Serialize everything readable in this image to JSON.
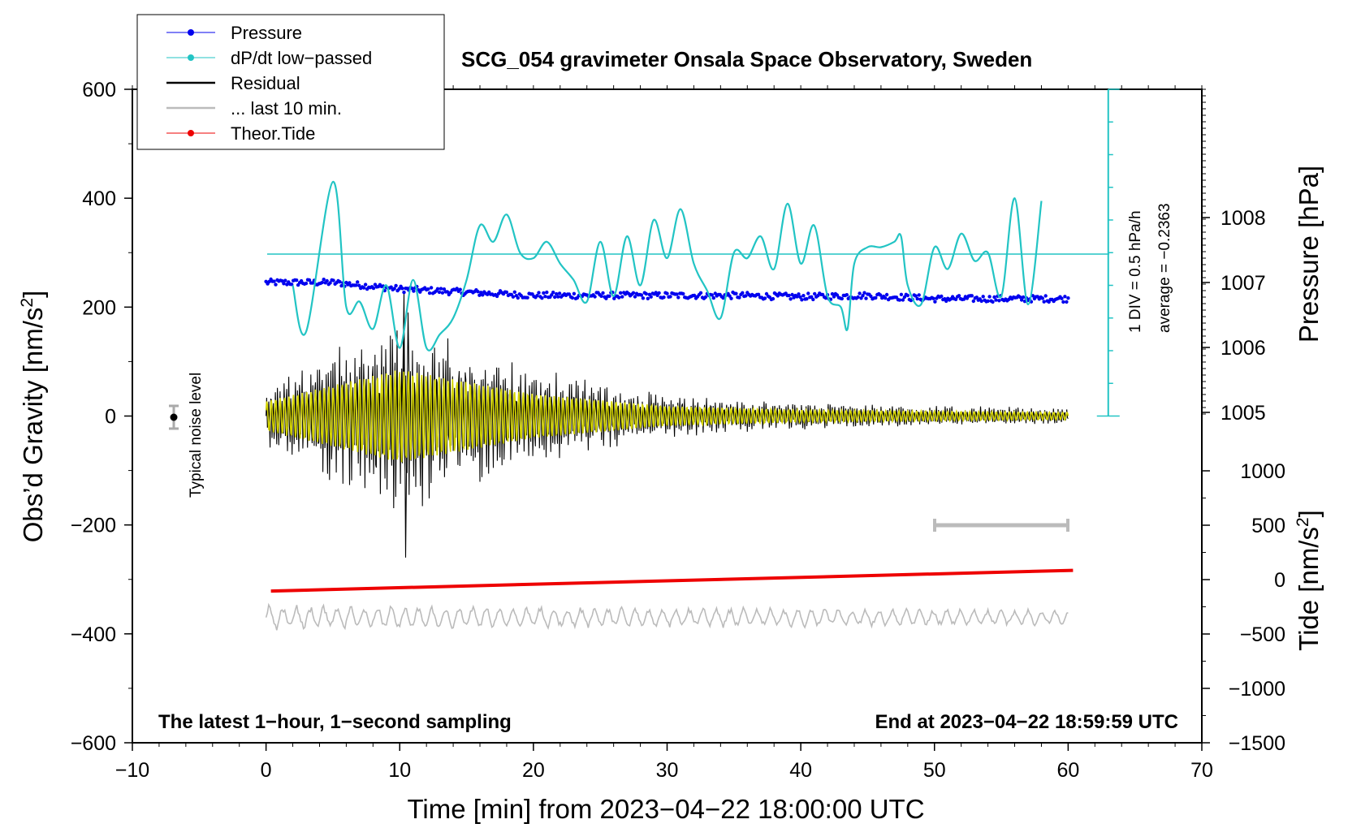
{
  "chart_data": {
    "type": "line",
    "title": "SCG_054 gravimeter Onsala Space Observatory, Sweden",
    "xlabel": "Time [min] from 2023−04−22 18:00:00 UTC",
    "ylabel_left_main": "Obs’d Gravity [nm/s",
    "ylabel_left_sup": "2",
    "ylabel_left_close": "]",
    "ylabel_right_top": "Pressure [hPa]",
    "ylabel_right_bottom_main": "Tide [nm/s",
    "ylabel_right_bottom_sup": "2",
    "ylabel_right_bottom_close": "]",
    "xlim": [
      -10,
      70
    ],
    "ylim": [
      -600,
      600
    ],
    "x_ticks": [
      "−10",
      "0",
      "10",
      "20",
      "30",
      "40",
      "50",
      "60",
      "70"
    ],
    "y_ticks": [
      "−600",
      "−400",
      "−200",
      "0",
      "200",
      "400",
      "600"
    ],
    "pressure_ticks": [
      "1008",
      "1007",
      "1006",
      "1005"
    ],
    "tide_ticks": [
      "1000",
      "500",
      "0",
      "−500",
      "−1000",
      "−1500"
    ],
    "footer_left": "The latest 1−hour, 1−second sampling",
    "footer_right": "End at 2023−04−22 18:59:59 UTC",
    "noise_label": "Typical noise level",
    "dpdt_scale_label": "1 DIV = 0.5 hPa/h",
    "dpdt_average_label": "average = −0.2363",
    "legend": [
      {
        "name": "Pressure",
        "color": "#0000ee",
        "style": "line-dot"
      },
      {
        "name": "dP/dt low−passed",
        "color": "#22c4c4",
        "style": "line-dot"
      },
      {
        "name": "Residual",
        "color": "#000000",
        "style": "line"
      },
      {
        "name": "... last 10 min.",
        "color": "#bbbbbb",
        "style": "line"
      },
      {
        "name": "Theor.Tide",
        "color": "#ee0000",
        "style": "line-dot"
      }
    ],
    "series": [
      {
        "name": "Pressure",
        "axis": "pressure_hPa",
        "color": "#0000ee",
        "x": [
          0,
          5,
          10,
          15,
          20,
          25,
          30,
          35,
          40,
          45,
          50,
          55,
          60
        ],
        "values": [
          1007.0,
          1007.0,
          1006.9,
          1006.85,
          1006.8,
          1006.8,
          1006.8,
          1006.8,
          1006.78,
          1006.8,
          1006.75,
          1006.75,
          1006.75
        ]
      },
      {
        "name": "dP/dt low-passed",
        "axis": "gravity_plot_units",
        "color": "#22c4c4",
        "baseline": 300,
        "x": [
          2,
          3,
          5,
          6,
          7,
          8,
          9,
          10,
          11,
          12,
          13,
          14,
          15,
          16,
          17,
          18,
          19,
          20,
          21,
          22,
          23,
          24,
          25,
          26,
          27,
          28,
          29,
          30,
          31,
          32,
          33,
          34,
          35,
          36,
          37,
          38,
          39,
          40,
          41,
          42,
          43,
          43.5,
          44,
          45,
          46,
          47,
          47.5,
          48,
          49,
          50,
          51,
          52,
          53,
          54,
          55,
          56,
          57,
          58
        ],
        "values": [
          240,
          155,
          430,
          200,
          210,
          160,
          240,
          125,
          250,
          125,
          150,
          180,
          250,
          350,
          320,
          370,
          300,
          290,
          320,
          280,
          250,
          210,
          320,
          220,
          330,
          240,
          360,
          290,
          380,
          280,
          230,
          180,
          300,
          290,
          330,
          270,
          390,
          280,
          350,
          220,
          200,
          160,
          280,
          310,
          310,
          320,
          330,
          240,
          205,
          310,
          270,
          335,
          285,
          300,
          220,
          400,
          205,
          395
        ]
      },
      {
        "name": "Residual",
        "axis": "gravity_nm_s2",
        "color": "#000000",
        "x": [
          0,
          10,
          20,
          30,
          40,
          50,
          60
        ],
        "amplitude": [
          60,
          190,
          90,
          40,
          25,
          20,
          15
        ]
      },
      {
        "name": "... last 10 min.",
        "axis": "gravity_plot_units",
        "color": "#bbbbbb",
        "baseline": -370,
        "x": [
          0,
          60
        ],
        "amplitude": [
          25,
          15
        ]
      },
      {
        "name": "Theor.Tide",
        "axis": "tide_nm_s2",
        "color": "#ee0000",
        "x": [
          0,
          60
        ],
        "values": [
          -105,
          85
        ]
      }
    ]
  }
}
